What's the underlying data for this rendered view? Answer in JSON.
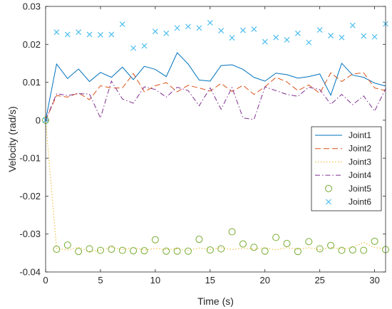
{
  "chart_data": {
    "type": "line",
    "title": "",
    "xlabel": "Time (s)",
    "ylabel": "Velocity (rad/s)",
    "xlim": [
      0,
      31
    ],
    "ylim": [
      -0.04,
      0.03
    ],
    "xticks": [
      0,
      5,
      10,
      15,
      20,
      25,
      30
    ],
    "yticks": [
      -0.04,
      -0.03,
      -0.02,
      -0.01,
      0,
      0.01,
      0.02,
      0.03
    ],
    "xtick_labels": [
      "0",
      "5",
      "10",
      "15",
      "20",
      "25",
      "30"
    ],
    "ytick_labels": [
      "-0.04",
      "-0.03",
      "-0.02",
      "-0.01",
      "0",
      "0.01",
      "0.02",
      "0.03"
    ],
    "grid": false,
    "legend_position": "right",
    "x": [
      0,
      1,
      2,
      3,
      4,
      5,
      6,
      7,
      8,
      9,
      10,
      11,
      12,
      13,
      14,
      15,
      16,
      17,
      18,
      19,
      20,
      21,
      22,
      23,
      24,
      25,
      26,
      27,
      28,
      29,
      30,
      31
    ],
    "series": [
      {
        "name": "Joint1",
        "style": "solid",
        "marker": "none",
        "color": "#0072BD",
        "values": [
          0,
          0.0148,
          0.011,
          0.0135,
          0.0102,
          0.0126,
          0.0113,
          0.014,
          0.0107,
          0.0142,
          0.0134,
          0.0115,
          0.0178,
          0.0148,
          0.0106,
          0.0103,
          0.0144,
          0.0146,
          0.0134,
          0.0113,
          0.0103,
          0.0124,
          0.012,
          0.0111,
          0.0115,
          0.0122,
          0.0066,
          0.015,
          0.0119,
          0.0113,
          0.0098,
          0.009
        ]
      },
      {
        "name": "Joint2",
        "style": "dashed",
        "marker": "none",
        "color": "#D95319",
        "values": [
          0,
          0.0065,
          0.0061,
          0.0072,
          0.0054,
          0.0091,
          0.0085,
          0.0085,
          0.0123,
          0.0075,
          0.0091,
          0.0099,
          0.0075,
          0.0092,
          0.0085,
          0.0077,
          0.0097,
          0.0076,
          0.0092,
          0.0068,
          0.0088,
          0.0113,
          0.0101,
          0.0078,
          0.0093,
          0.0071,
          0.0125,
          0.0102,
          0.0122,
          0.0125,
          0.0085,
          0.0078
        ]
      },
      {
        "name": "Joint3",
        "style": "dotted",
        "marker": "none",
        "color": "#EDB120",
        "values": [
          0,
          -0.0338,
          -0.0342,
          -0.0335,
          -0.0346,
          -0.0342,
          -0.0335,
          -0.0341,
          -0.0336,
          -0.0342,
          -0.0338,
          -0.0341,
          -0.0339,
          -0.0343,
          -0.0337,
          -0.0341,
          -0.0336,
          -0.0341,
          -0.0337,
          -0.034,
          -0.0336,
          -0.0342,
          -0.0336,
          -0.034,
          -0.0336,
          -0.0341,
          -0.0335,
          -0.034,
          -0.0335,
          -0.0322,
          -0.0336,
          -0.0338
        ]
      },
      {
        "name": "Joint4",
        "style": "dashdot",
        "marker": "none",
        "color": "#7E2F8E",
        "values": [
          0,
          0.007,
          0.0065,
          0.007,
          0.0069,
          0.0006,
          0.0103,
          0.0056,
          0.0045,
          0.0088,
          0.0081,
          0.0061,
          0.0087,
          0.0078,
          0.0038,
          0.0085,
          0.0029,
          0.0086,
          0.0006,
          0.0002,
          0.0088,
          0.0078,
          0.0068,
          0.0063,
          0.0087,
          0.0081,
          0.0042,
          0.0068,
          0.0041,
          0.0064,
          0.0024,
          0.0083
        ]
      },
      {
        "name": "Joint5",
        "style": "none",
        "marker": "circle",
        "color": "#77AC30",
        "values": [
          0,
          -0.034,
          -0.0329,
          -0.0346,
          -0.0339,
          -0.0343,
          -0.034,
          -0.0343,
          -0.0344,
          -0.0344,
          -0.0315,
          -0.0345,
          -0.0345,
          -0.0345,
          -0.0314,
          -0.0342,
          -0.0339,
          -0.0294,
          -0.0326,
          -0.0335,
          -0.0345,
          -0.0309,
          -0.0325,
          -0.0346,
          -0.032,
          -0.0339,
          -0.033,
          -0.0343,
          -0.0342,
          -0.0343,
          -0.0319,
          -0.0341
        ]
      },
      {
        "name": "Joint6",
        "style": "none",
        "marker": "x",
        "color": "#4DBEEE",
        "values": [
          0,
          0.0232,
          0.0226,
          0.0232,
          0.0226,
          0.0225,
          0.0226,
          0.0253,
          0.019,
          0.0196,
          0.0234,
          0.0229,
          0.0243,
          0.0247,
          0.0243,
          0.0257,
          0.0236,
          0.0217,
          0.0237,
          0.024,
          0.0207,
          0.0218,
          0.0212,
          0.0229,
          0.0205,
          0.0238,
          0.0223,
          0.0218,
          0.025,
          0.0222,
          0.022,
          0.0254
        ]
      }
    ]
  }
}
